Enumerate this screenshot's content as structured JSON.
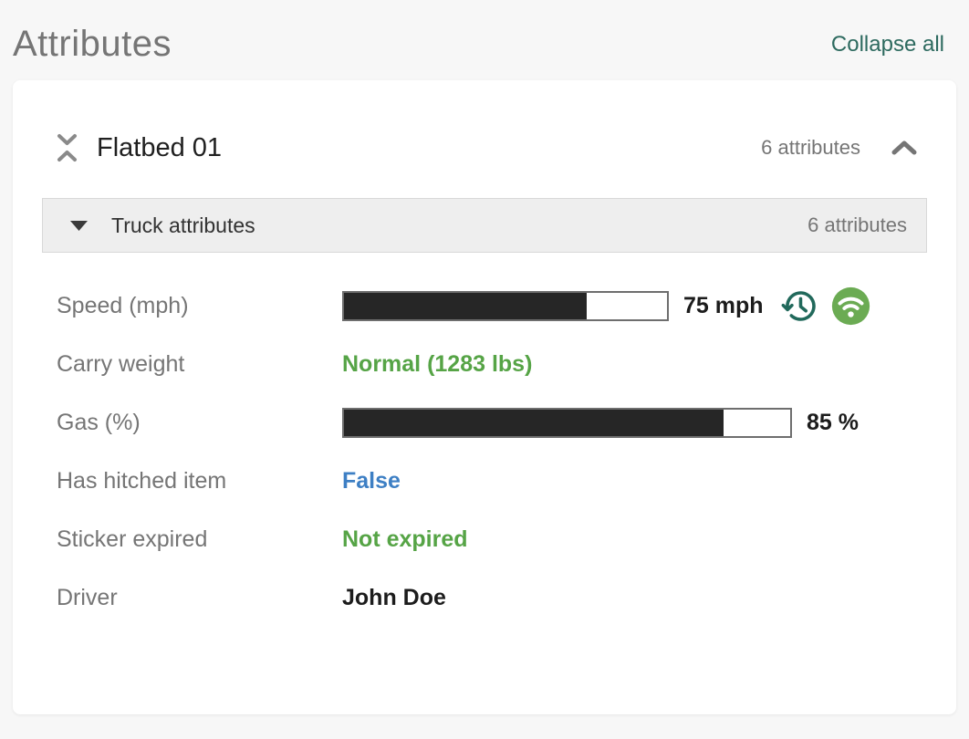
{
  "page": {
    "title": "Attributes",
    "collapse_all_label": "Collapse all"
  },
  "card": {
    "group": {
      "title": "Flatbed 01",
      "count_label": "6 attributes",
      "collapse_icon": "collapse-vertical-icon",
      "toggle_icon": "chevron-up-icon"
    },
    "section": {
      "title": "Truck attributes",
      "count_label": "6 attributes",
      "expander_icon": "caret-down-icon"
    },
    "rows": [
      {
        "label": "Speed (mph)",
        "type": "bar",
        "percent": 75,
        "value_label": "75 mph",
        "icons": [
          "history-icon",
          "wifi-icon"
        ]
      },
      {
        "label": "Carry weight",
        "type": "text",
        "value": "Normal (1283 lbs)",
        "color": "green"
      },
      {
        "label": "Gas (%)",
        "type": "bar",
        "percent": 85,
        "value_label": "85 %"
      },
      {
        "label": "Has hitched item",
        "type": "text",
        "value": "False",
        "color": "blue"
      },
      {
        "label": "Sticker expired",
        "type": "text",
        "value": "Not expired",
        "color": "green"
      },
      {
        "label": "Driver",
        "type": "text",
        "value": "John Doe",
        "color": "black"
      }
    ]
  },
  "colors": {
    "page_background": "#f7f7f7",
    "accent_teal": "#2d6a5f",
    "status_green": "#56a446",
    "status_blue": "#3d7fc4",
    "bar_fill": "#262626",
    "wifi_badge_green": "#6bab53",
    "muted_gray": "#757575"
  }
}
